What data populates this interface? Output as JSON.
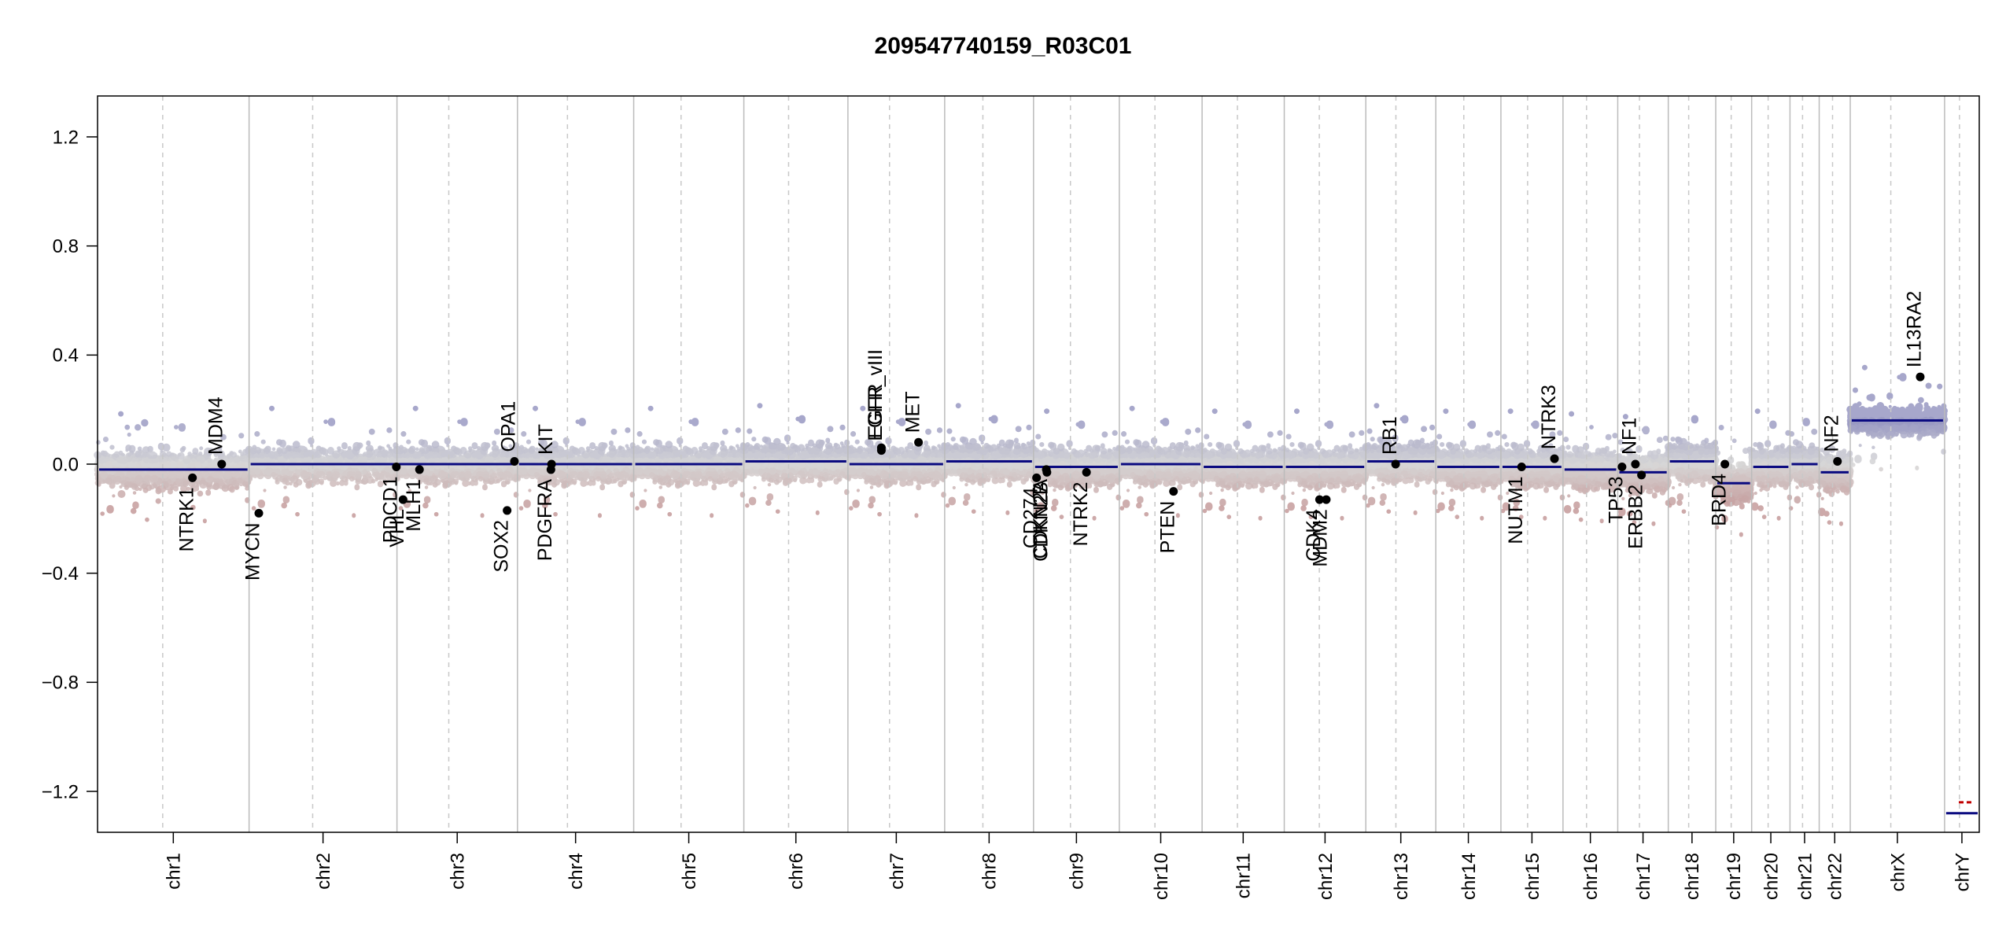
{
  "chart_data": {
    "type": "scatter",
    "title": "209547740159_R03C01",
    "xlabel": "",
    "ylabel": "",
    "ylim": [
      -1.35,
      1.35
    ],
    "y_ticks": [
      -1.2,
      -0.8,
      -0.4,
      0.0,
      0.4,
      0.8,
      1.2
    ],
    "y_tick_labels": [
      "−1.2",
      "−0.8",
      "−0.4",
      "0.0",
      "0.4",
      "0.8",
      "1.2"
    ],
    "grid": false,
    "x_axis": "genome position (chromosomes)",
    "chromosomes": [
      {
        "name": "chr1",
        "length": 249
      },
      {
        "name": "chr2",
        "length": 243
      },
      {
        "name": "chr3",
        "length": 198
      },
      {
        "name": "chr4",
        "length": 191
      },
      {
        "name": "chr5",
        "length": 181
      },
      {
        "name": "chr6",
        "length": 171
      },
      {
        "name": "chr7",
        "length": 159
      },
      {
        "name": "chr8",
        "length": 146
      },
      {
        "name": "chr9",
        "length": 141
      },
      {
        "name": "chr10",
        "length": 136
      },
      {
        "name": "chr11",
        "length": 135
      },
      {
        "name": "chr12",
        "length": 134
      },
      {
        "name": "chr13",
        "length": 115
      },
      {
        "name": "chr14",
        "length": 107
      },
      {
        "name": "chr15",
        "length": 102
      },
      {
        "name": "chr16",
        "length": 90
      },
      {
        "name": "chr17",
        "length": 83
      },
      {
        "name": "chr18",
        "length": 78
      },
      {
        "name": "chr19",
        "length": 59
      },
      {
        "name": "chr20",
        "length": 63
      },
      {
        "name": "chr21",
        "length": 48
      },
      {
        "name": "chr22",
        "length": 51
      },
      {
        "name": "chrX",
        "length": 155
      },
      {
        "name": "chrY",
        "length": 57
      }
    ],
    "segments": [
      {
        "chr": "chr1",
        "value": -0.02
      },
      {
        "chr": "chr2",
        "value": 0.0
      },
      {
        "chr": "chr3",
        "value": 0.0
      },
      {
        "chr": "chr4",
        "value": 0.0
      },
      {
        "chr": "chr5",
        "value": 0.0
      },
      {
        "chr": "chr6",
        "value": 0.01
      },
      {
        "chr": "chr7",
        "value": 0.0
      },
      {
        "chr": "chr8",
        "value": 0.01
      },
      {
        "chr": "chr9",
        "value": -0.01
      },
      {
        "chr": "chr10",
        "value": 0.0
      },
      {
        "chr": "chr11",
        "value": -0.01
      },
      {
        "chr": "chr12",
        "value": -0.01
      },
      {
        "chr": "chr13",
        "value": 0.01
      },
      {
        "chr": "chr14",
        "value": -0.01
      },
      {
        "chr": "chr15",
        "value": -0.01
      },
      {
        "chr": "chr16",
        "value": -0.02
      },
      {
        "chr": "chr17",
        "value": -0.03
      },
      {
        "chr": "chr18",
        "value": 0.01
      },
      {
        "chr": "chr19",
        "value": -0.07
      },
      {
        "chr": "chr20",
        "value": -0.01
      },
      {
        "chr": "chr21",
        "value": 0.0
      },
      {
        "chr": "chr22",
        "value": -0.03
      },
      {
        "chr": "chrX",
        "value": 0.16
      },
      {
        "chr": "chrY",
        "value": -1.28
      }
    ],
    "genes": [
      {
        "name": "NTRK1",
        "chr": "chr1",
        "pos": 156,
        "value": -0.05,
        "label_side": "below"
      },
      {
        "name": "MDM4",
        "chr": "chr1",
        "pos": 204,
        "value": 0.0,
        "label_side": "above"
      },
      {
        "name": "MYCN",
        "chr": "chr2",
        "pos": 16,
        "value": -0.18,
        "label_side": "below"
      },
      {
        "name": "PDCD1",
        "chr": "chr2",
        "pos": 242,
        "value": -0.01,
        "label_side": "below"
      },
      {
        "name": "VHL",
        "chr": "chr3",
        "pos": 10,
        "value": -0.13,
        "label_side": "below"
      },
      {
        "name": "MLH1",
        "chr": "chr3",
        "pos": 37,
        "value": -0.02,
        "label_side": "below"
      },
      {
        "name": "SOX2",
        "chr": "chr3",
        "pos": 181,
        "value": -0.17,
        "label_side": "below"
      },
      {
        "name": "OPA1",
        "chr": "chr3",
        "pos": 193,
        "value": 0.01,
        "label_side": "above"
      },
      {
        "name": "PDGFRA",
        "chr": "chr4",
        "pos": 55,
        "value": -0.02,
        "label_side": "below"
      },
      {
        "name": "KIT",
        "chr": "chr4",
        "pos": 56,
        "value": 0.0,
        "label_side": "above"
      },
      {
        "name": "EGFR",
        "chr": "chr7",
        "pos": 55,
        "value": 0.06,
        "label_side": "above"
      },
      {
        "name": "EGFR_vIII",
        "chr": "chr7",
        "pos": 55,
        "value": 0.05,
        "label_side": "above"
      },
      {
        "name": "MET",
        "chr": "chr7",
        "pos": 116,
        "value": 0.08,
        "label_side": "above"
      },
      {
        "name": "CD274",
        "chr": "chr9",
        "pos": 5,
        "value": -0.05,
        "label_side": "below"
      },
      {
        "name": "CDKN2A",
        "chr": "chr9",
        "pos": 21,
        "value": -0.02,
        "label_side": "below"
      },
      {
        "name": "CDKN2B",
        "chr": "chr9",
        "pos": 22,
        "value": -0.03,
        "label_side": "below"
      },
      {
        "name": "NTRK2",
        "chr": "chr9",
        "pos": 87,
        "value": -0.03,
        "label_side": "below"
      },
      {
        "name": "PTEN",
        "chr": "chr10",
        "pos": 89,
        "value": -0.1,
        "label_side": "below"
      },
      {
        "name": "CDK4",
        "chr": "chr12",
        "pos": 58,
        "value": -0.13,
        "label_side": "below"
      },
      {
        "name": "MDM2",
        "chr": "chr12",
        "pos": 69,
        "value": -0.13,
        "label_side": "below"
      },
      {
        "name": "RB1",
        "chr": "chr13",
        "pos": 49,
        "value": 0.0,
        "label_side": "above"
      },
      {
        "name": "NUTM1",
        "chr": "chr15",
        "pos": 34,
        "value": -0.01,
        "label_side": "below"
      },
      {
        "name": "NTRK3",
        "chr": "chr15",
        "pos": 88,
        "value": 0.02,
        "label_side": "above"
      },
      {
        "name": "TP53",
        "chr": "chr17",
        "pos": 7,
        "value": -0.01,
        "label_side": "below"
      },
      {
        "name": "NF1",
        "chr": "chr17",
        "pos": 29,
        "value": 0.0,
        "label_side": "above"
      },
      {
        "name": "ERBB2",
        "chr": "chr17",
        "pos": 39,
        "value": -0.04,
        "label_side": "below"
      },
      {
        "name": "BRD4",
        "chr": "chr19",
        "pos": 15,
        "value": 0.0,
        "label_side": "below"
      },
      {
        "name": "NF2",
        "chr": "chr22",
        "pos": 30,
        "value": 0.01,
        "label_side": "above"
      },
      {
        "name": "IL13RA2",
        "chr": "chrX",
        "pos": 115,
        "value": 0.32,
        "label_side": "above"
      }
    ],
    "colors": {
      "gain": "#9898c2",
      "loss": "#c49a9a",
      "neutral": "#d7d7d7",
      "segment": "#0a0a80",
      "segment_y_alt": "#c00000",
      "gene_marker": "#000000",
      "chromosome_line": "#bbbbbb",
      "centromere_line": "#c8c8c8"
    }
  }
}
